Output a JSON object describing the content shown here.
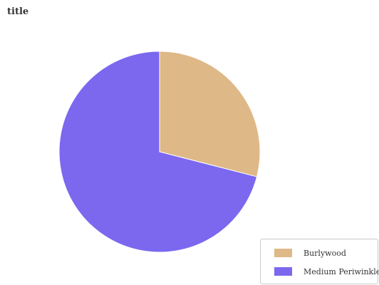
{
  "chart_data": {
    "type": "pie",
    "title": "title",
    "slices": [
      {
        "label": "Burlywood",
        "value": 29,
        "color": "#DEB887"
      },
      {
        "label": "Medium Periwinkle",
        "value": 71,
        "color": "#7B68EE"
      }
    ],
    "legend_position": "bottom-right"
  }
}
